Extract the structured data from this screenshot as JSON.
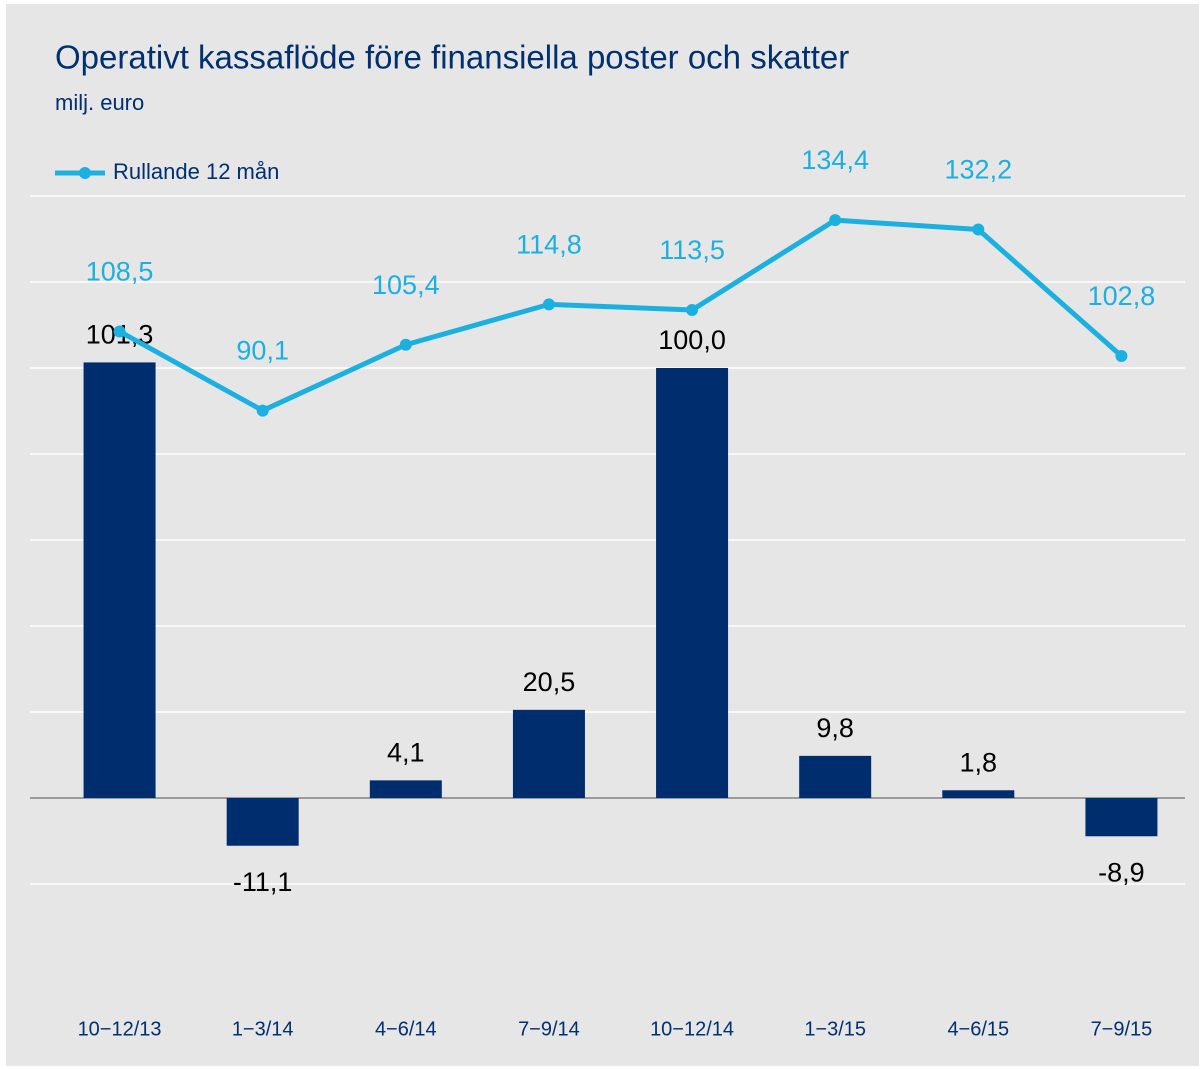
{
  "chart_data": {
    "type": "bar",
    "title": "Operativt kassaflöde före finansiella poster och skatter",
    "subtitle": "milj. euro",
    "categories": [
      "10−12/13",
      "1−3/14",
      "4−6/14",
      "7−9/14",
      "10−12/14",
      "1−3/15",
      "4−6/15",
      "7−9/15"
    ],
    "series": [
      {
        "type": "bar",
        "color": "#002d6e",
        "values": [
          101.3,
          -11.1,
          4.1,
          20.5,
          100.0,
          9.8,
          1.8,
          -8.9
        ],
        "value_labels": [
          "101,3",
          "-11,1",
          "4,1",
          "20,5",
          "100,0",
          "9,8",
          "1,8",
          "-8,9"
        ]
      },
      {
        "type": "line",
        "name": "Rullande 12 mån",
        "color": "#1cb0e0",
        "values": [
          108.5,
          90.1,
          105.4,
          114.8,
          113.5,
          134.4,
          132.2,
          102.8
        ],
        "value_labels": [
          "108,5",
          "90,1",
          "105,4",
          "114,8",
          "113,5",
          "134,4",
          "132,2",
          "102,8"
        ]
      }
    ],
    "ylim": [
      -40,
      140
    ],
    "yticks": [
      -20,
      0,
      20,
      40,
      60,
      80,
      100,
      120,
      140
    ],
    "grid": true,
    "legend": "top-left"
  }
}
